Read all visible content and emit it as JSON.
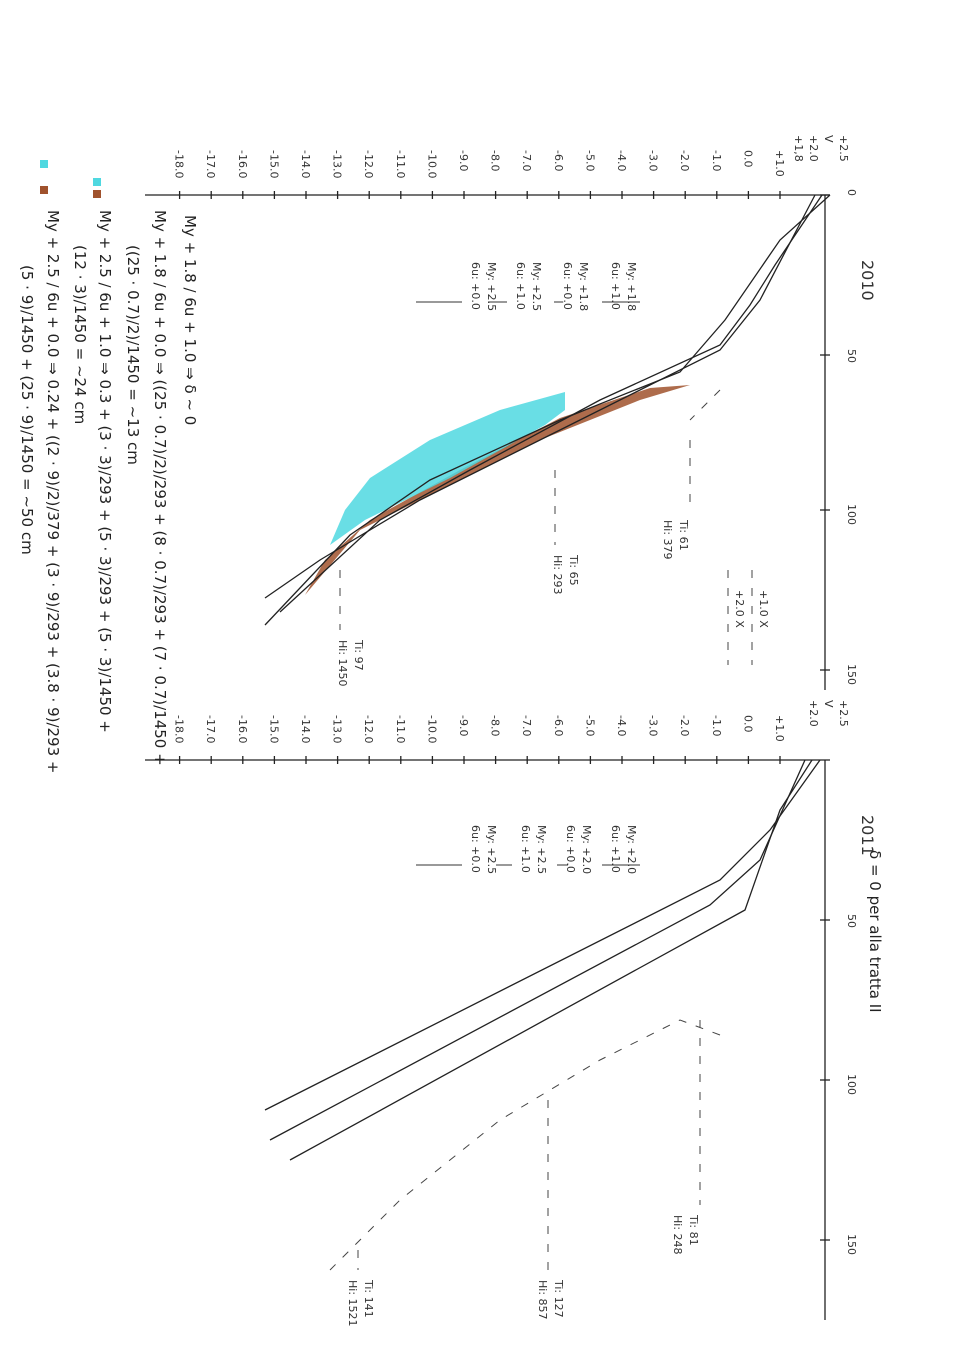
{
  "panels": [
    {
      "year": "2010",
      "levels": [
        "+2.5",
        "V",
        "+2.0",
        "+1,8"
      ],
      "depth_ticks": [
        "+1.0",
        "0.0",
        "-1.0",
        "-2.0",
        "-3.0",
        "-4.0",
        "-5.0",
        "-6.0",
        "-7.0",
        "-8.0",
        "-9.0",
        "-10.0",
        "-11.0",
        "-12.0",
        "-13.0",
        "-14.0",
        "-15.0",
        "-16.0",
        "-17.0",
        "-18.0"
      ],
      "distance_ticks": [
        "0",
        "50",
        "100",
        "150"
      ],
      "annotations": [
        [
          "My: +1.8",
          "6u: +1.0"
        ],
        [
          "My: +1.8",
          "6u: +0.0"
        ],
        [
          "My: +2.5",
          "6u: +1.0"
        ],
        [
          "My: +2.5",
          "6u: +0.0"
        ]
      ],
      "sections": [
        [
          "Ti: 61",
          "Hi: 379"
        ],
        [
          "Ti: 65",
          "Hi: 293"
        ],
        [
          "Ti: 97",
          "Hi: 1450"
        ]
      ],
      "legend": [
        "+1.0 X",
        "+2.0 X"
      ]
    },
    {
      "year": "2011",
      "levels": [
        "+2.5",
        "V",
        "+2.0"
      ],
      "depth_ticks": [
        "+1.0",
        "0.0",
        "-1.0",
        "-2.0",
        "-3.0",
        "-4.0",
        "-5.0",
        "-6.0",
        "-7.0",
        "-8.0",
        "-9.0",
        "-10.0",
        "-11.0",
        "-12.0",
        "-13.0",
        "-14.0",
        "-15.0",
        "-16.0",
        "-17.0",
        "-18.0"
      ],
      "distance_ticks": [
        "50",
        "100",
        "150"
      ],
      "annotations": [
        [
          "My: +2.0",
          "6u: +1.0"
        ],
        [
          "My: +2.0",
          "6u: +0.0"
        ],
        [
          "My: +2.5",
          "6u: +1.0"
        ],
        [
          "My: +2.5",
          "6u: +0.0"
        ]
      ],
      "sections": [
        [
          "Ti: 81",
          "Hi: 248"
        ],
        [
          "Ti: 127",
          "Hi: 857"
        ],
        [
          "Ti: 141",
          "Hi: 1521"
        ]
      ],
      "note": "δ = 0 per alla tratta II"
    }
  ],
  "calculations": [
    "My + 1.8 / 6u + 1.0 ⇒ δ ~ 0",
    "My + 1.8 / 6u + 0.0 ⇒ ((25 · 0.7)/2)/293 + (8 · 0.7)/293 + (7 · 0.7)/1450 +",
    "((25 · 0.7)/2)/1450 = ~13 cm",
    "My + 2.5 / 6u + 1.0 ⇒ 0.3 + (3 · 3)/293 + (5 · 3)/293 + (5 · 3)/1450 +",
    "(12 · 3)/1450 = ~24 cm",
    "My + 2.5 / 6u + 0.0 ⇒ 0.24 + ((2 · 9)/2)/379 + (3 · 9)/293 + (3.8 · 9)/293 +",
    "(5 · 9)/1450 + (25 · 9)/1450 = ~50 cm"
  ]
}
